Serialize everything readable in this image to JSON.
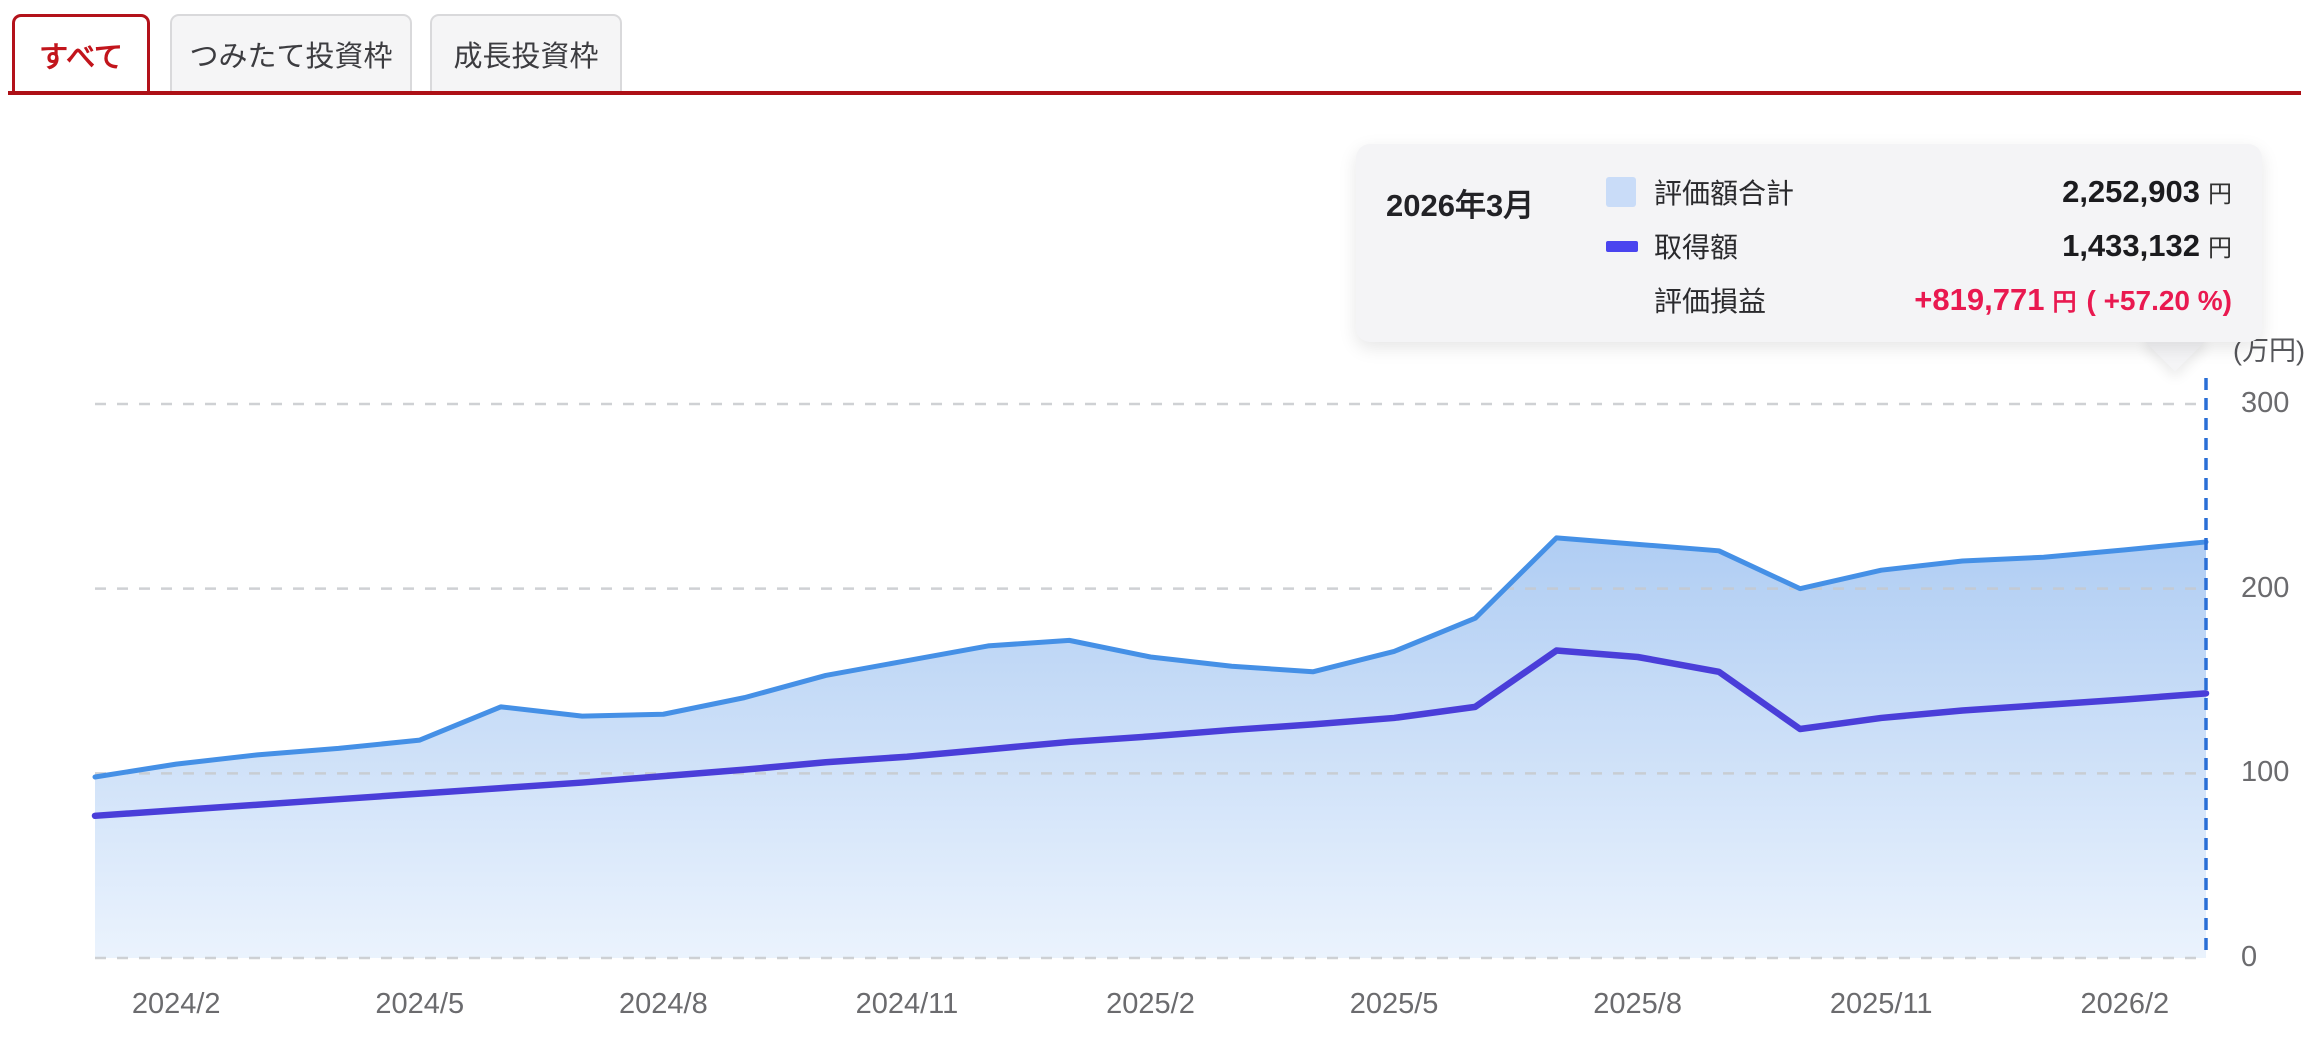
{
  "tabs": [
    {
      "label": "すべて",
      "active": true
    },
    {
      "label": "つみたて投資枠",
      "active": false
    },
    {
      "label": "成長投資枠",
      "active": false
    }
  ],
  "tooltip": {
    "date": "2026年3月",
    "rows": [
      {
        "label": "評価額合計",
        "value": "2,252,903",
        "unit": "円"
      },
      {
        "label": "取得額",
        "value": "1,433,132",
        "unit": "円"
      }
    ],
    "pl": {
      "label": "評価損益",
      "value": "+819,771",
      "unit": "円",
      "pct": "( +57.20 %)"
    }
  },
  "colors": {
    "tab_border_red": "#b3121a",
    "tab_text_red": "#c2151c",
    "underline_red": "#ad1016",
    "inactive_tab_bg": "#f5f5f6",
    "inactive_tab_border": "#d9d9db",
    "tooltip_bg": "#f4f4f6",
    "gain_red": "#e91950",
    "area_swatch": "#c9dcf8",
    "line_swatch": "#4a44ef"
  },
  "chart_data": {
    "type": "area",
    "title": "",
    "unit_label": "(万円)",
    "ylabel": "万円",
    "ylim": [
      0,
      300
    ],
    "y_ticks": [
      300,
      200,
      100,
      0
    ],
    "x_labels": [
      "2024/2",
      "2024/5",
      "2024/8",
      "2024/11",
      "2025/2",
      "2025/5",
      "2025/8",
      "2025/11",
      "2026/2"
    ],
    "months": [
      "2024/1",
      "2024/2",
      "2024/3",
      "2024/4",
      "2024/5",
      "2024/6",
      "2024/7",
      "2024/8",
      "2024/9",
      "2024/10",
      "2024/11",
      "2024/12",
      "2025/1",
      "2025/2",
      "2025/3",
      "2025/4",
      "2025/5",
      "2025/6",
      "2025/7",
      "2025/8",
      "2025/9",
      "2025/10",
      "2025/11",
      "2025/12",
      "2026/1",
      "2026/2",
      "2026/3"
    ],
    "series": [
      {
        "name": "評価額合計",
        "style": "area",
        "color": "#4590e6",
        "values": [
          98,
          105,
          110,
          113.5,
          118,
          136,
          131,
          132,
          141,
          153,
          161,
          169,
          172,
          163,
          158,
          155,
          166,
          184,
          227.5,
          224,
          220.5,
          200,
          210,
          215,
          217,
          221,
          225.3
        ]
      },
      {
        "name": "取得額",
        "style": "line",
        "color": "#4a3ed9",
        "values": [
          77,
          80,
          83,
          86,
          89,
          92,
          95,
          98.5,
          102,
          106,
          109,
          113,
          117,
          120,
          123.5,
          126.5,
          130,
          136,
          166.5,
          163,
          155,
          124,
          130,
          134,
          137,
          140,
          143.3
        ]
      }
    ],
    "area_gradient": [
      "#a9c9f2",
      "#e9f2fd"
    ],
    "grid_color": "#c7c9cd",
    "hover_line_color": "#2a6fd6",
    "axis_text_color": "#6b6b6e",
    "hover_index": 26,
    "legend_position": "tooltip",
    "grid": true
  }
}
